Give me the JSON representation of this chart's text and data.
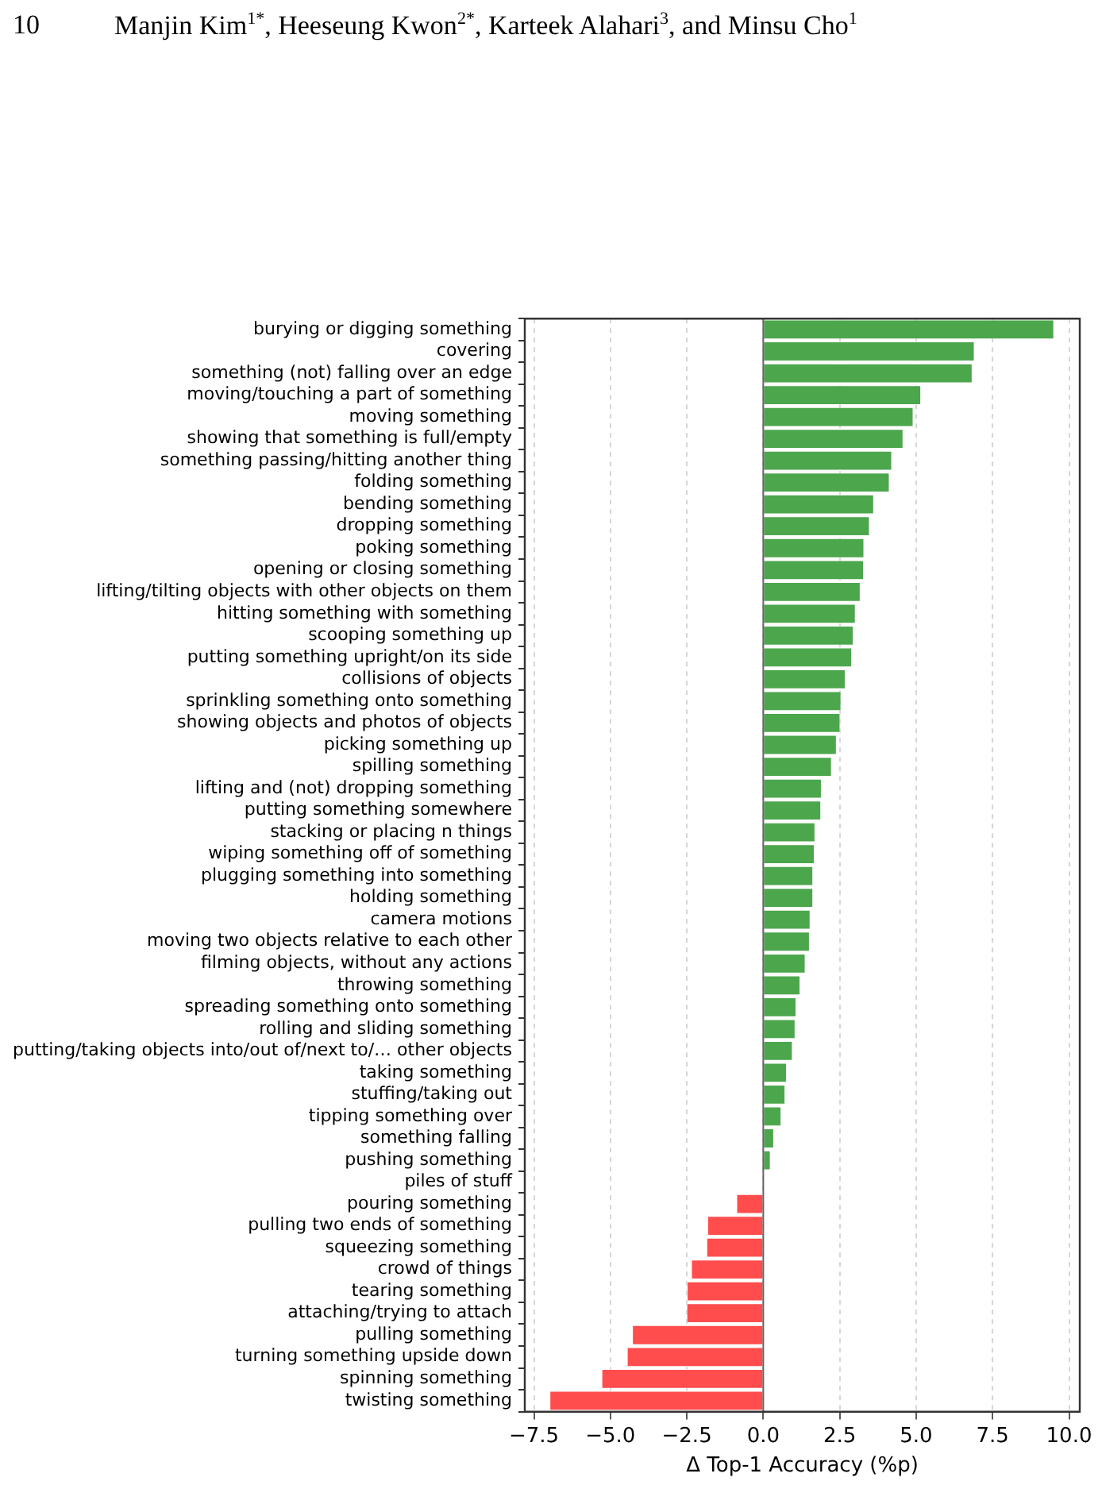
{
  "chart_data": {
    "type": "bar",
    "orientation": "horizontal",
    "annotations": [
      "10",
      "Manjin Kim$^{1*}$, Heeseung Kwon$^{2*}$, Karteek Alahari$^{3}$, and Minsu Cho$^{1}$"
    ],
    "xlabel": "Δ Top-1 Accuracy (%p)",
    "categories": [
      "burying or digging something",
      "covering",
      "something (not) falling over an edge",
      "moving/touching a part of something",
      "moving something",
      "showing that something is full/empty",
      "something passing/hitting another thing",
      "folding something",
      "bending something",
      "dropping something",
      "poking something",
      "opening or closing something",
      "lifting/tilting objects with other objects on them",
      "hitting something with something",
      "scooping something up",
      "putting something upright/on its side",
      "collisions of objects",
      "sprinkling something onto something",
      "showing objects and photos of objects",
      "picking something up",
      "spilling something",
      "lifting and (not) dropping something",
      "putting something somewhere",
      "stacking or placing n things",
      "wiping something off of something",
      "plugging something into something",
      "holding something",
      "camera motions",
      "moving two objects relative to each other",
      "filming objects, without any actions",
      "throwing something",
      "spreading something onto something",
      "rolling and sliding something",
      "putting/taking objects into/out of/next to/… other objects",
      "taking something",
      "stuffing/taking out",
      "tipping something over",
      "something falling",
      "pushing something",
      "piles of stuff",
      "pouring something",
      "pulling two ends of something",
      "squeezing something",
      "crowd of things",
      "tearing something",
      "attaching/trying to attach",
      "pulling something",
      "turning something upside down",
      "spinning something",
      "twisting something"
    ],
    "values": [
      9.51,
      6.91,
      6.84,
      5.16,
      4.91,
      4.58,
      4.21,
      4.13,
      3.62,
      3.48,
      3.3,
      3.29,
      3.18,
      3.02,
      2.95,
      2.9,
      2.69,
      2.55,
      2.52,
      2.4,
      2.24,
      1.91,
      1.89,
      1.7,
      1.68,
      1.63,
      1.63,
      1.54,
      1.52,
      1.38,
      1.21,
      1.08,
      1.05,
      0.96,
      0.77,
      0.72,
      0.59,
      0.35,
      0.24,
      0,
      -0.88,
      -1.83,
      -1.86,
      -2.36,
      -2.5,
      -2.51,
      -4.29,
      -4.46,
      -5.29,
      -6.99
    ],
    "colors": [
      "#4ca64c",
      "#4ca64c",
      "#4ca64c",
      "#4ca64c",
      "#4ca64c",
      "#4ca64c",
      "#4ca64c",
      "#4ca64c",
      "#4ca64c",
      "#4ca64c",
      "#4ca64c",
      "#4ca64c",
      "#4ca64c",
      "#4ca64c",
      "#4ca64c",
      "#4ca64c",
      "#4ca64c",
      "#4ca64c",
      "#4ca64c",
      "#4ca64c",
      "#4ca64c",
      "#4ca64c",
      "#4ca64c",
      "#4ca64c",
      "#4ca64c",
      "#4ca64c",
      "#4ca64c",
      "#4ca64c",
      "#4ca64c",
      "#4ca64c",
      "#4ca64c",
      "#4ca64c",
      "#4ca64c",
      "#4ca64c",
      "#4ca64c",
      "#4ca64c",
      "#4ca64c",
      "#4ca64c",
      "#4ca64c",
      "#4ca64c",
      "#ff4d4d",
      "#ff4d4d",
      "#ff4d4d",
      "#ff4d4d",
      "#ff4d4d",
      "#ff4d4d",
      "#ff4d4d",
      "#ff4d4d",
      "#ff4d4d",
      "#ff4d4d"
    ],
    "xlim": [
      -7.8,
      10.35
    ],
    "xticks": [
      {
        "value": -7.5,
        "label": "−7.5"
      },
      {
        "value": -5,
        "label": "−5.0"
      },
      {
        "value": -2.5,
        "label": "−2.5"
      },
      {
        "value": 0,
        "label": "0.0"
      },
      {
        "value": 2.5,
        "label": "2.5"
      },
      {
        "value": 5,
        "label": "5.0"
      },
      {
        "value": 7.5,
        "label": "7.5"
      },
      {
        "value": 10,
        "label": "10.0"
      }
    ],
    "grid": "x",
    "legend": false
  }
}
